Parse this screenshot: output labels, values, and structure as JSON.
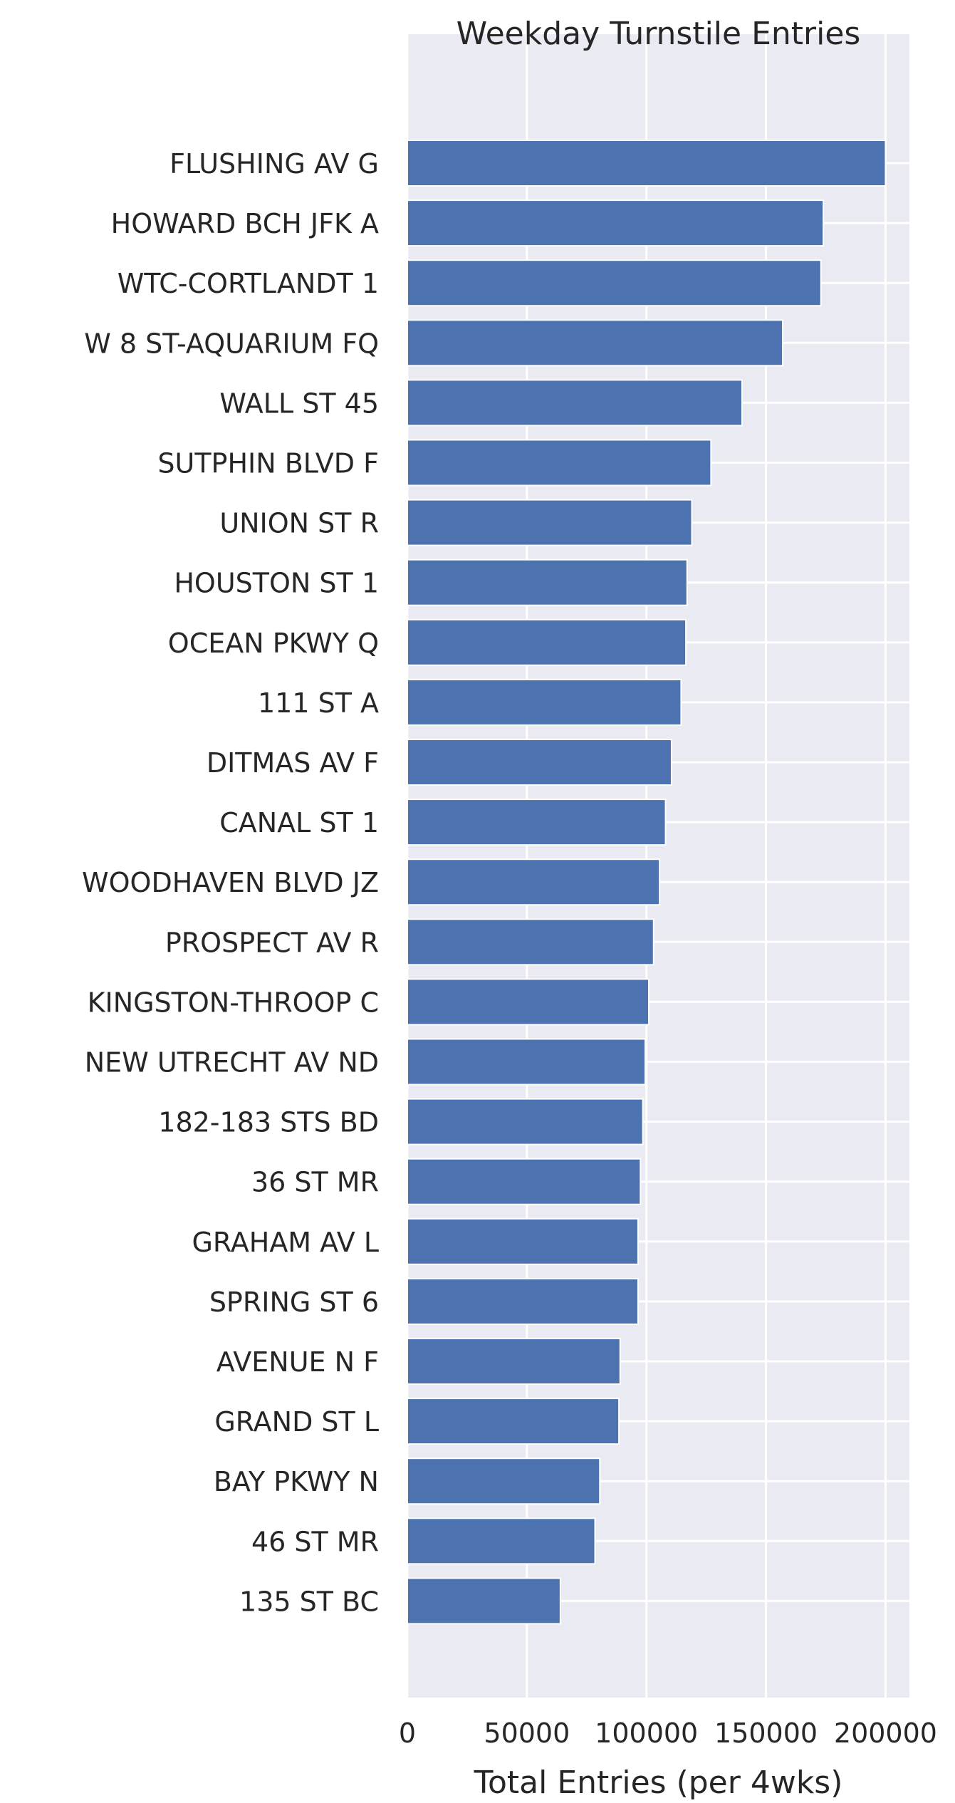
{
  "chart_data": {
    "type": "bar",
    "orientation": "horizontal",
    "title": "Weekday Turnstile Entries",
    "xlabel": "Total Entries (per 4wks)",
    "ylabel": "",
    "xlim": [
      0,
      210000
    ],
    "xticks": [
      0,
      50000,
      100000,
      150000,
      200000
    ],
    "xtick_labels": [
      "0",
      "50000",
      "100000",
      "150000",
      "200000"
    ],
    "grid": true,
    "background": "#eaeaf2",
    "bar_color": "#4c72b0",
    "categories": [
      "FLUSHING AV G",
      "HOWARD BCH JFK A",
      "WTC-CORTLANDT 1",
      "W 8 ST-AQUARIUM FQ",
      "WALL ST 45",
      "SUTPHIN BLVD F",
      "UNION ST R",
      "HOUSTON ST 1",
      "OCEAN PKWY Q",
      "111 ST A",
      "DITMAS AV F",
      "CANAL ST 1",
      "WOODHAVEN BLVD JZ",
      "PROSPECT AV R",
      "KINGSTON-THROOP C",
      "NEW UTRECHT AV ND",
      "182-183 STS BD",
      "36 ST MR",
      "GRAHAM AV L",
      "SPRING ST 6",
      "AVENUE N F",
      "GRAND ST L",
      "BAY PKWY N",
      "46 ST MR",
      "135 ST BC"
    ],
    "values": [
      200000,
      174000,
      173000,
      157000,
      140000,
      127000,
      119000,
      117000,
      116500,
      114500,
      110500,
      108000,
      105500,
      103000,
      101000,
      99500,
      98500,
      97500,
      96500,
      96500,
      89000,
      88500,
      80500,
      78500,
      64000
    ]
  }
}
